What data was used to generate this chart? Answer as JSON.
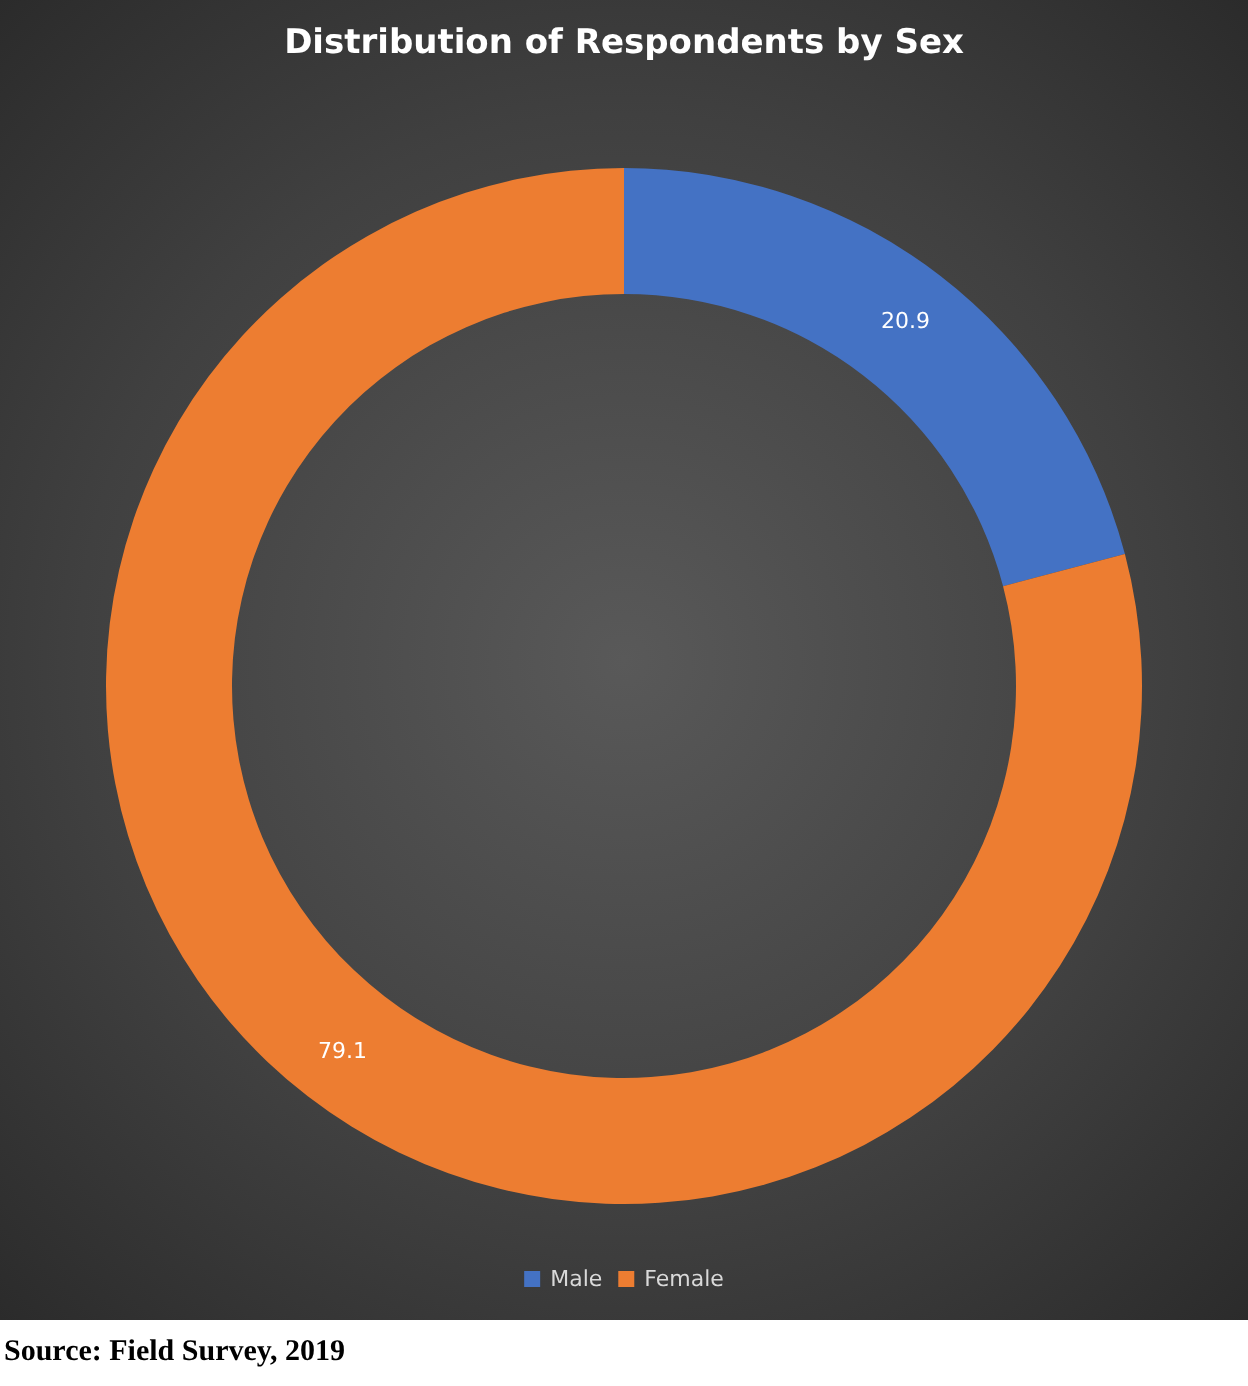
{
  "chart_data": {
    "type": "donut",
    "title": "Distribution of Respondents by Sex",
    "categories": [
      "Male",
      "Female"
    ],
    "values": [
      20.9,
      79.1
    ],
    "colors": [
      "#4472c4",
      "#ed7d31"
    ],
    "data_labels": true,
    "legend": "bottom",
    "annotations": [
      "Source: Field Survey, 2019"
    ]
  }
}
